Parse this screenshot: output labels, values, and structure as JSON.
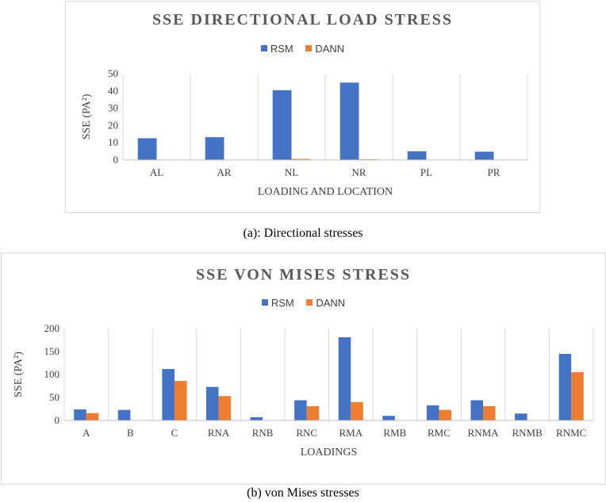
{
  "charts": [
    {
      "id": "chart1",
      "legend": [
        {
          "name": "RSM",
          "color": "#4472c4"
        },
        {
          "name": "DANN",
          "color": "#ed7d31"
        }
      ]
    },
    {
      "id": "chart2",
      "legend": [
        {
          "name": "RSM",
          "color": "#4472c4"
        },
        {
          "name": "DANN",
          "color": "#ed7d31"
        }
      ]
    }
  ],
  "chart_data": [
    {
      "type": "bar",
      "title": "SSE DIRECTIONAL LOAD STRESS",
      "xlabel": "LOADING AND LOCATION",
      "ylabel": "SSE (PA²)",
      "categories": [
        "AL",
        "AR",
        "NL",
        "NR",
        "PL",
        "PR"
      ],
      "series": [
        {
          "name": "RSM",
          "color": "#4472c4",
          "values": [
            12.6,
            13.2,
            40.4,
            44.8,
            5.0,
            4.8
          ]
        },
        {
          "name": "DANN",
          "color": "#ed7d31",
          "values": [
            0.05,
            0.05,
            0.6,
            0.4,
            0.05,
            0.05
          ]
        }
      ],
      "ylim": [
        0,
        50
      ],
      "yticks": [
        0,
        10,
        20,
        30,
        40,
        50
      ],
      "grid": "vertical",
      "legend_position": "top"
    },
    {
      "type": "bar",
      "title": "SSE VON MISES STRESS",
      "xlabel": "LOADINGS",
      "ylabel": "SSE (PA²)",
      "categories": [
        "A",
        "B",
        "C",
        "RNA",
        "RNB",
        "RNC",
        "RMA",
        "RMB",
        "RMC",
        "RNMA",
        "RNMB",
        "RNMC"
      ],
      "series": [
        {
          "name": "RSM",
          "color": "#4472c4",
          "values": [
            24,
            23,
            112,
            73,
            7,
            44,
            181,
            10,
            33,
            44,
            15,
            145
          ]
        },
        {
          "name": "DANN",
          "color": "#ed7d31",
          "values": [
            16,
            0.5,
            86,
            53,
            0.5,
            31,
            40,
            0.5,
            23,
            31,
            0.5,
            105
          ]
        }
      ],
      "ylim": [
        0,
        200
      ],
      "yticks": [
        0,
        50,
        100,
        150,
        200
      ],
      "grid": "vertical",
      "legend_position": "top"
    }
  ],
  "captions": {
    "a": "(a): Directional stresses",
    "b": "(b) von Mises stresses"
  }
}
